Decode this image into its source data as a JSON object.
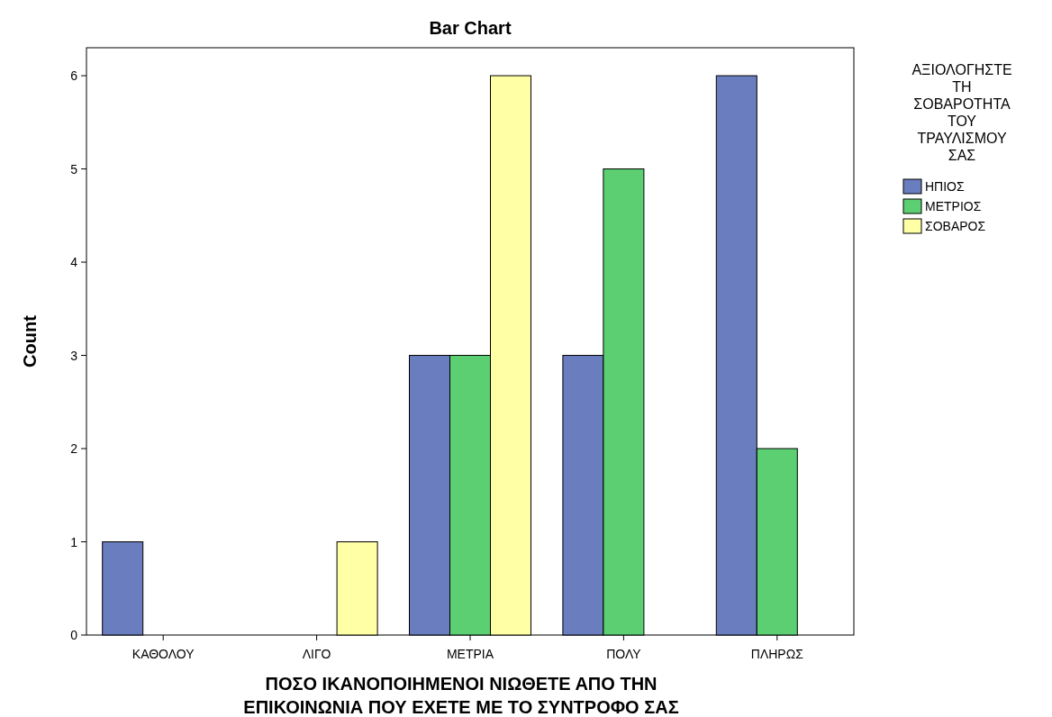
{
  "chart_data": {
    "type": "bar",
    "title": "Bar Chart",
    "xlabel": "ΠΟΣΟ ΙΚΑΝΟΠΟΙΗΜΕΝΟΙ ΝΙΩΘΕΤΕ ΑΠΟ ΤΗΝ ΕΠΙΚΟΙΝΩΝΙΑ ΠΟΥ ΕΧΕΤΕ ΜΕ ΤΟ ΣΥΝΤΡΟΦΟ ΣΑΣ",
    "ylabel": "Count",
    "legend_title": "ΑΞΙΟΛΟΓΗΣΤΕ ΤΗ ΣΟΒΑΡΟΤΗΤΑ ΤΟΥ ΤΡΑΥΛΙΣΜΟΥ ΣΑΣ",
    "categories": [
      "ΚΑΘΟΛΟΥ",
      "ΛΙΓΟ",
      "ΜΕΤΡΙΑ",
      "ΠΟΛΥ",
      "ΠΛΗΡΩΣ"
    ],
    "series": [
      {
        "name": "ΗΠΙΟΣ",
        "color": "#6a7dbf",
        "values": [
          1,
          null,
          3,
          3,
          6
        ]
      },
      {
        "name": "ΜΕΤΡΙΟΣ",
        "color": "#5ccf72",
        "values": [
          null,
          null,
          3,
          5,
          2
        ]
      },
      {
        "name": "ΣΟΒΑΡΟΣ",
        "color": "#ffffa6",
        "values": [
          null,
          1,
          6,
          null,
          null
        ]
      }
    ],
    "ylim": [
      0,
      6.3
    ],
    "yticks": [
      0,
      1,
      2,
      3,
      4,
      5,
      6
    ],
    "grid": false,
    "legend": "right"
  }
}
